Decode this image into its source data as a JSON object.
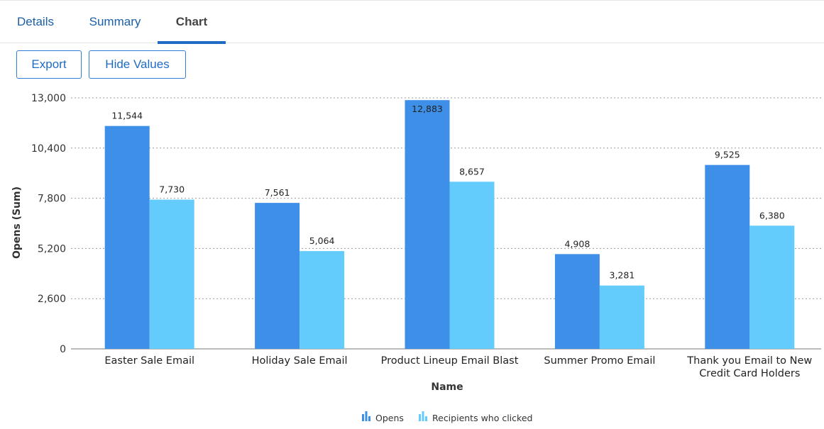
{
  "tabs": [
    {
      "label": "Details",
      "active": false
    },
    {
      "label": "Summary",
      "active": false
    },
    {
      "label": "Chart",
      "active": true
    }
  ],
  "toolbar": {
    "export_label": "Export",
    "hide_values_label": "Hide Values"
  },
  "colors": {
    "opens": "#3d8fe8",
    "clicked": "#63ccfd"
  },
  "chart_data": {
    "type": "bar",
    "xlabel": "Name",
    "ylabel": "Opens (Sum)",
    "ylim": [
      0,
      13000
    ],
    "yticks": [
      "0",
      "2,600",
      "5,200",
      "7,800",
      "10,400",
      "13,000"
    ],
    "ytick_values": [
      0,
      2600,
      5200,
      7800,
      10400,
      13000
    ],
    "categories": [
      [
        "Easter Sale Email"
      ],
      [
        "Holiday Sale Email"
      ],
      [
        "Product Lineup Email Blast"
      ],
      [
        "Summer Promo Email"
      ],
      [
        "Thank you Email to New",
        "Credit Card Holders"
      ]
    ],
    "series": [
      {
        "name": "Opens",
        "values": [
          11544,
          7561,
          12883,
          4908,
          9525
        ],
        "labels": [
          "11,544",
          "7,561",
          "12,883",
          "4,908",
          "9,525"
        ]
      },
      {
        "name": "Recipients who clicked",
        "values": [
          7730,
          5064,
          8657,
          3281,
          6380
        ],
        "labels": [
          "7,730",
          "5,064",
          "8,657",
          "3,281",
          "6,380"
        ]
      }
    ],
    "grid": true,
    "legend": "bottom-center"
  }
}
